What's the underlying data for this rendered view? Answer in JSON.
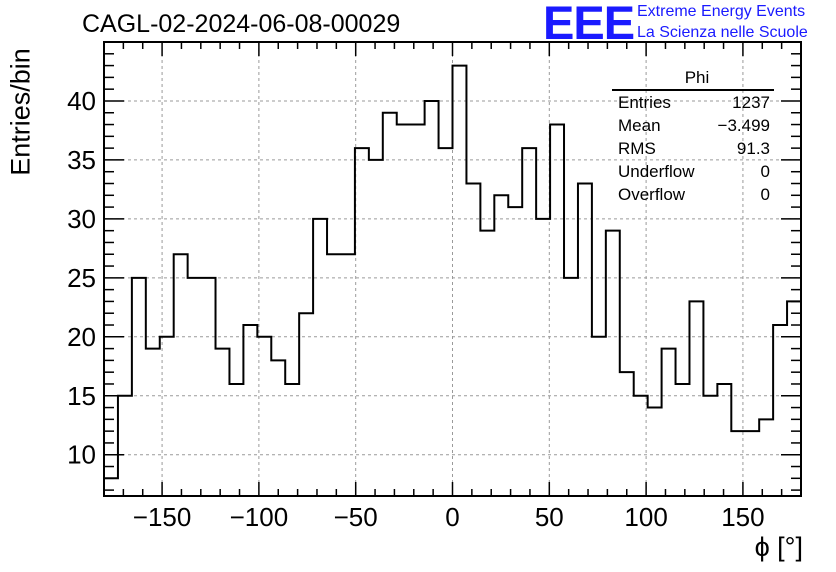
{
  "title": "CAGL-02-2024-06-08-00029",
  "logo": {
    "text": "EEE",
    "line1": "Extreme Energy Events",
    "line2": "La Scienza nelle Scuole",
    "color": "#1a1aff"
  },
  "stats": {
    "name": "Phi",
    "rows": [
      {
        "label": "Entries",
        "value": "1237"
      },
      {
        "label": "Mean",
        "value": "−3.499"
      },
      {
        "label": "RMS",
        "value": "91.3"
      },
      {
        "label": "Underflow",
        "value": "0"
      },
      {
        "label": "Overflow",
        "value": "0"
      }
    ]
  },
  "chart_data": {
    "type": "bar",
    "style": "step-histogram",
    "xlabel": "ϕ [°]",
    "ylabel": "Entries/bin",
    "xlim": [
      -180,
      180
    ],
    "ylim": [
      6.5,
      45
    ],
    "grid": true,
    "x_ticks": [
      -150,
      -100,
      -50,
      0,
      50,
      100,
      150
    ],
    "x_tick_labels": [
      "−150",
      "−100",
      "−50",
      "0",
      "50",
      "100",
      "150"
    ],
    "y_ticks": [
      10,
      15,
      20,
      25,
      30,
      35,
      40
    ],
    "y_tick_labels": [
      "10",
      "15",
      "20",
      "25",
      "30",
      "35",
      "40"
    ],
    "bin_edges_start": -180,
    "bin_width": 7.2,
    "values": [
      8,
      15,
      25,
      19,
      20,
      27,
      25,
      25,
      19,
      16,
      21,
      20,
      18,
      16,
      22,
      30,
      27,
      27,
      36,
      35,
      39,
      38,
      38,
      40,
      36,
      43,
      33,
      29,
      32,
      31,
      36,
      30,
      38,
      25,
      33,
      20,
      29,
      17,
      15,
      14,
      19,
      16,
      23,
      15,
      16,
      12,
      12,
      13,
      21,
      23
    ],
    "line_color": "#000000",
    "grid_color": "#9a9a9a"
  }
}
